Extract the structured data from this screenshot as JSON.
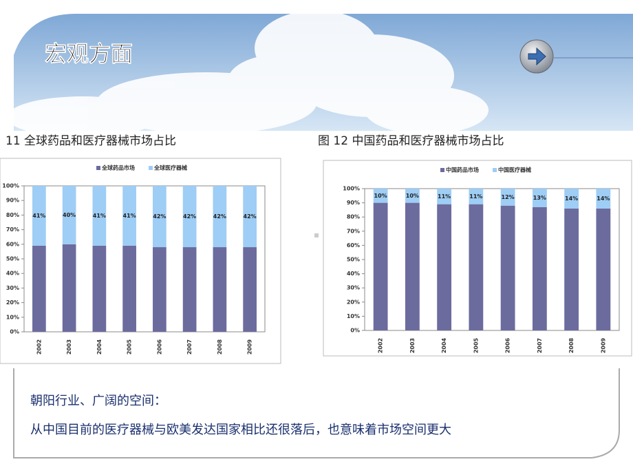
{
  "header": {
    "title": "宏观方面"
  },
  "chart_data": [
    {
      "type": "stacked-bar",
      "title": "11 全球药品和医疗器械市场占比",
      "categories": [
        "2002",
        "2003",
        "2004",
        "2005",
        "2006",
        "2007",
        "2008",
        "2009"
      ],
      "series": [
        {
          "name": "全球药品市场",
          "color": "#6b6b9e",
          "values": [
            59,
            60,
            59,
            59,
            58,
            58,
            58,
            58
          ]
        },
        {
          "name": "全球医疗器械",
          "color": "#9ecdf5",
          "values": [
            41,
            40,
            41,
            41,
            42,
            42,
            42,
            42
          ],
          "value_labels": [
            "41%",
            "40%",
            "41%",
            "41%",
            "42%",
            "42%",
            "42%",
            "42%"
          ]
        }
      ],
      "ylim": [
        0,
        100
      ],
      "yticks": [
        {
          "value": 0,
          "label": "0%"
        },
        {
          "value": 10,
          "label": "10%"
        },
        {
          "value": 20,
          "label": "20%"
        },
        {
          "value": 30,
          "label": "30%"
        },
        {
          "value": 40,
          "label": "40%"
        },
        {
          "value": 50,
          "label": "50%"
        },
        {
          "value": 60,
          "label": "60%"
        },
        {
          "value": 70,
          "label": "70%"
        },
        {
          "value": 80,
          "label": "80%"
        },
        {
          "value": 90,
          "label": "90%"
        },
        {
          "value": 100,
          "label": "100%"
        }
      ]
    },
    {
      "type": "stacked-bar",
      "title": "图 12 中国药品和医疗器械市场占比",
      "categories": [
        "2002",
        "2003",
        "2004",
        "2005",
        "2006",
        "2007",
        "2008",
        "2009"
      ],
      "series": [
        {
          "name": "中国药品市场",
          "color": "#6b6b9e",
          "values": [
            90,
            90,
            89,
            89,
            88,
            87,
            86,
            86
          ]
        },
        {
          "name": "中国医疗器械",
          "color": "#9ecdf5",
          "values": [
            10,
            10,
            11,
            11,
            12,
            13,
            14,
            14
          ],
          "value_labels": [
            "10%",
            "10%",
            "11%",
            "11%",
            "12%",
            "13%",
            "14%",
            "14%"
          ]
        }
      ],
      "ylim": [
        0,
        100
      ],
      "yticks": [
        {
          "value": 0,
          "label": "0%"
        },
        {
          "value": 10,
          "label": "10%"
        },
        {
          "value": 20,
          "label": "20%"
        },
        {
          "value": 30,
          "label": "30%"
        },
        {
          "value": 40,
          "label": "40%"
        },
        {
          "value": 50,
          "label": "50%"
        },
        {
          "value": 60,
          "label": "60%"
        },
        {
          "value": 70,
          "label": "70%"
        },
        {
          "value": 80,
          "label": "80%"
        },
        {
          "value": 90,
          "label": "90%"
        },
        {
          "value": 100,
          "label": "100%"
        }
      ]
    }
  ],
  "text": {
    "heading": "朝阳行业、广阔的空间：",
    "body": "从中国目前的医疗器械与欧美发达国家相比还很落后，也意味着市场空间更大"
  }
}
